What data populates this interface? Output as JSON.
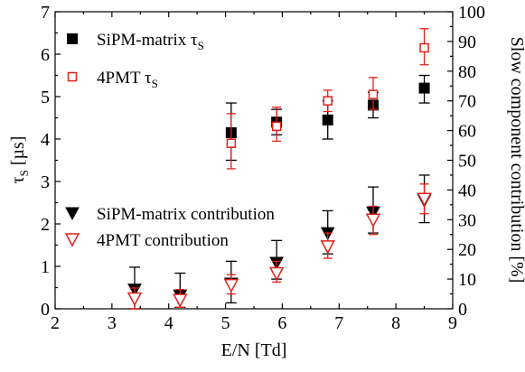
{
  "chart_data": {
    "type": "scatter",
    "title": "",
    "xlabel": "E/N [Td]",
    "ylabel_left": "τS [µs]",
    "ylabel_left_main": "τ",
    "ylabel_left_sub": "S",
    "ylabel_left_unit": " [µs]",
    "ylabel_right": "Slow component contribution [%]",
    "xlim": [
      2,
      9
    ],
    "ylim_left": [
      0,
      7
    ],
    "ylim_right": [
      0,
      100
    ],
    "x_ticks": [
      "2",
      "3",
      "4",
      "5",
      "6",
      "7",
      "8",
      "9"
    ],
    "y_left_ticks": [
      "0",
      "1",
      "2",
      "3",
      "4",
      "5",
      "6",
      "7"
    ],
    "y_right_ticks": [
      "0",
      "10",
      "20",
      "30",
      "40",
      "50",
      "60",
      "70",
      "80",
      "90",
      "100"
    ],
    "grid": false,
    "colors": {
      "black": "#000000",
      "red": "#e0201b"
    },
    "legend_top": [
      {
        "name": "SiPM-matrix τS",
        "main": "SiPM-matrix τ",
        "sub": "S",
        "marker": "filled-square",
        "color": "#000000"
      },
      {
        "name": "4PMT τS",
        "main": "4PMT τ",
        "sub": "S",
        "marker": "open-square",
        "color": "#e0201b"
      }
    ],
    "legend_bottom": [
      {
        "name": "SiPM-matrix contribution",
        "marker": "filled-triangle-down",
        "color": "#000000"
      },
      {
        "name": "4PMT contribution",
        "marker": "open-triangle-down",
        "color": "#e0201b"
      }
    ],
    "series": [
      {
        "name": "SiPM-matrix τS",
        "axis": "left",
        "marker": "filled-square",
        "color": "#000000",
        "points": [
          {
            "x": 5.1,
            "y": 4.15,
            "err_lo": 0.65,
            "err_hi": 0.7
          },
          {
            "x": 5.9,
            "y": 4.4,
            "err_lo": 0.3,
            "err_hi": 0.3
          },
          {
            "x": 6.8,
            "y": 4.45,
            "err_lo": 0.45,
            "err_hi": 0.45
          },
          {
            "x": 7.6,
            "y": 4.8,
            "err_lo": 0.3,
            "err_hi": 0.3
          },
          {
            "x": 8.5,
            "y": 5.2,
            "err_lo": 0.35,
            "err_hi": 0.3
          }
        ]
      },
      {
        "name": "4PMT τS",
        "axis": "left",
        "marker": "open-square",
        "color": "#e0201b",
        "points": [
          {
            "x": 5.1,
            "y": 3.9,
            "err_lo": 0.6,
            "err_hi": 0.7
          },
          {
            "x": 5.9,
            "y": 4.3,
            "err_lo": 0.35,
            "err_hi": 0.45
          },
          {
            "x": 6.8,
            "y": 4.9,
            "err_lo": 0.25,
            "err_hi": 0.25
          },
          {
            "x": 7.6,
            "y": 5.05,
            "err_lo": 0.35,
            "err_hi": 0.4
          },
          {
            "x": 8.5,
            "y": 6.15,
            "err_lo": 0.4,
            "err_hi": 0.45
          }
        ]
      },
      {
        "name": "SiPM-matrix contribution",
        "axis": "right",
        "marker": "filled-triangle-down",
        "color": "#000000",
        "points": [
          {
            "x": 3.4,
            "y": 6.5,
            "err_lo": 6.5,
            "err_hi": 7.5
          },
          {
            "x": 4.2,
            "y": 4.5,
            "err_lo": 4.0,
            "err_hi": 7.5
          },
          {
            "x": 5.1,
            "y": 8.5,
            "err_lo": 6.5,
            "err_hi": 7.5
          },
          {
            "x": 5.9,
            "y": 15.5,
            "err_lo": 5.5,
            "err_hi": 7.5
          },
          {
            "x": 6.8,
            "y": 25.5,
            "err_lo": 7.0,
            "err_hi": 7.5
          },
          {
            "x": 7.6,
            "y": 32.5,
            "err_lo": 7.0,
            "err_hi": 8.5
          },
          {
            "x": 8.5,
            "y": 36.5,
            "err_lo": 7.5,
            "err_hi": 8.5
          }
        ]
      },
      {
        "name": "4PMT contribution",
        "axis": "right",
        "marker": "open-triangle-down",
        "color": "#e0201b",
        "points": [
          {
            "x": 3.4,
            "y": 3.5,
            "err_lo": 3.5,
            "err_hi": 3.5
          },
          {
            "x": 4.2,
            "y": 3.0,
            "err_lo": 2.5,
            "err_hi": 3.5
          },
          {
            "x": 5.1,
            "y": 8.0,
            "err_lo": 3.0,
            "err_hi": 3.5
          },
          {
            "x": 5.9,
            "y": 12.0,
            "err_lo": 3.0,
            "err_hi": 4.0
          },
          {
            "x": 6.8,
            "y": 21.0,
            "err_lo": 4.0,
            "err_hi": 4.5
          },
          {
            "x": 7.6,
            "y": 30.0,
            "err_lo": 5.0,
            "err_hi": 4.5
          },
          {
            "x": 8.5,
            "y": 37.0,
            "err_lo": 5.0,
            "err_hi": 5.0
          }
        ]
      }
    ]
  }
}
